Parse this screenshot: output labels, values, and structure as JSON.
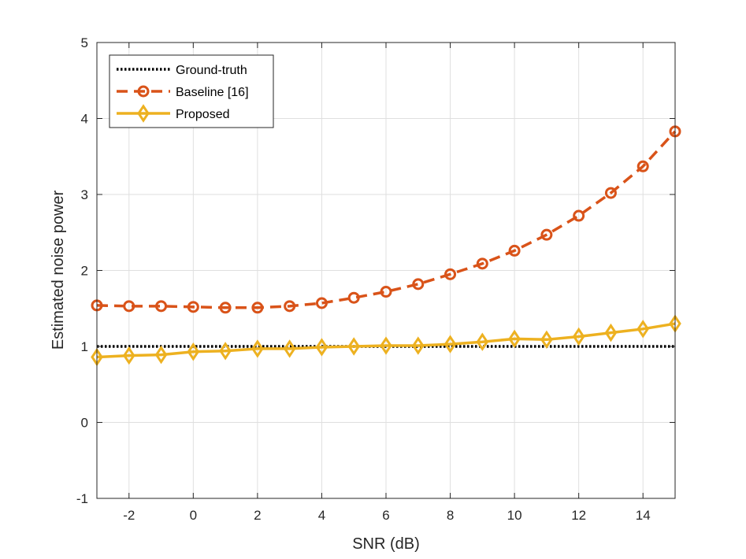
{
  "chart_data": {
    "type": "line",
    "title": "",
    "xlabel": "SNR (dB)",
    "ylabel": "Estimated noise power",
    "xlim": [
      -3,
      15
    ],
    "ylim": [
      -1,
      5
    ],
    "xticks": [
      -2,
      0,
      2,
      4,
      6,
      8,
      10,
      12,
      14
    ],
    "yticks": [
      -1,
      0,
      1,
      2,
      3,
      4,
      5
    ],
    "grid": true,
    "legend_position": "top-left",
    "x": [
      -3,
      -2,
      -1,
      0,
      1,
      2,
      3,
      4,
      5,
      6,
      7,
      8,
      9,
      10,
      11,
      12,
      13,
      14,
      15
    ],
    "series": [
      {
        "name": "Ground-truth",
        "style": "dotted",
        "marker": "none",
        "color": "#000000",
        "values": [
          1,
          1,
          1,
          1,
          1,
          1,
          1,
          1,
          1,
          1,
          1,
          1,
          1,
          1,
          1,
          1,
          1,
          1,
          1
        ]
      },
      {
        "name": "Baseline [16]",
        "style": "dashed",
        "marker": "circle",
        "color": "#D95319",
        "values": [
          1.54,
          1.53,
          1.53,
          1.52,
          1.51,
          1.51,
          1.53,
          1.57,
          1.64,
          1.72,
          1.82,
          1.95,
          2.09,
          2.26,
          2.47,
          2.72,
          3.02,
          3.37,
          3.83
        ]
      },
      {
        "name": "Proposed",
        "style": "solid",
        "marker": "diamond",
        "color": "#EDB120",
        "values": [
          0.86,
          0.88,
          0.89,
          0.93,
          0.94,
          0.97,
          0.97,
          0.99,
          1.0,
          1.01,
          1.01,
          1.03,
          1.06,
          1.1,
          1.09,
          1.13,
          1.18,
          1.23,
          1.3
        ]
      }
    ]
  }
}
